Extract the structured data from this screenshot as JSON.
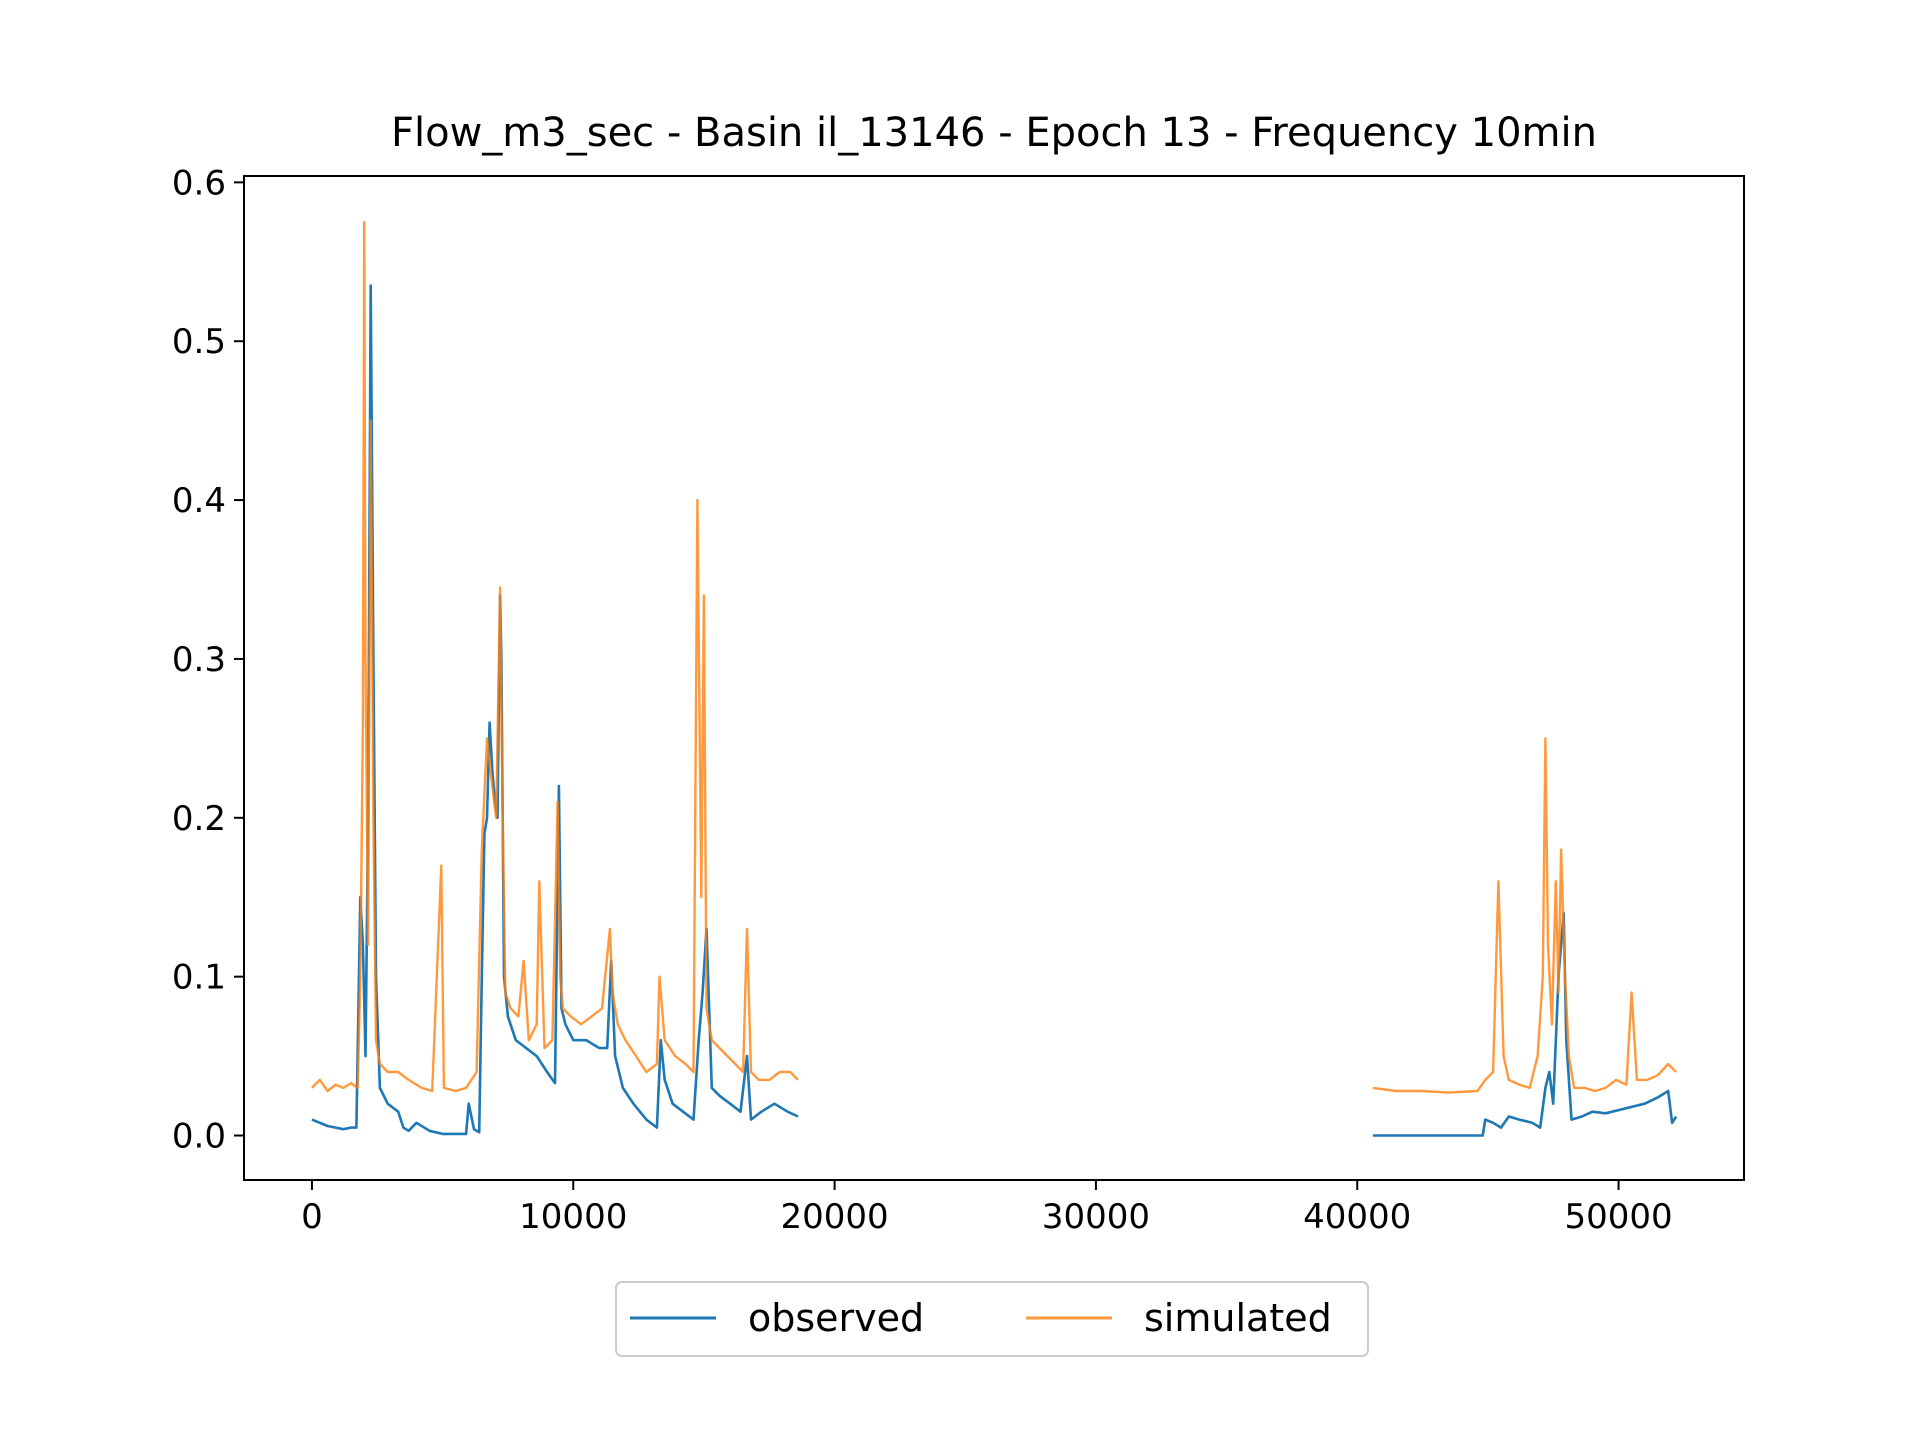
{
  "chart_data": {
    "type": "line",
    "title": "Flow_m3_sec - Basin il_13146 - Epoch 13 - Frequency 10min",
    "xlabel": "",
    "ylabel": "",
    "xlim": [
      -2600,
      54800
    ],
    "ylim": [
      -0.028,
      0.604
    ],
    "x_ticks": [
      0,
      10000,
      20000,
      30000,
      40000,
      50000
    ],
    "x_tick_labels": [
      "0",
      "10000",
      "20000",
      "30000",
      "40000",
      "50000"
    ],
    "y_ticks": [
      0.0,
      0.1,
      0.2,
      0.3,
      0.4,
      0.5,
      0.6
    ],
    "y_tick_labels": [
      "0.0",
      "0.1",
      "0.2",
      "0.3",
      "0.4",
      "0.5",
      "0.6"
    ],
    "grid": false,
    "legend": {
      "position": "bottom-center-outside",
      "columns": 2
    },
    "series": [
      {
        "name": "observed",
        "color": "#1f77b4",
        "x": [
          0,
          600,
          1200,
          1500,
          1700,
          1850,
          1950,
          2050,
          2150,
          2250,
          2350,
          2450,
          2600,
          2900,
          3300,
          3500,
          3700,
          4000,
          4500,
          5000,
          5500,
          5900,
          6000,
          6200,
          6400,
          6500,
          6600,
          6700,
          6800,
          6900,
          7000,
          7100,
          7200,
          7250,
          7350,
          7500,
          7800,
          8200,
          8600,
          9000,
          9300,
          9450,
          9550,
          9700,
          10000,
          10500,
          11000,
          11300,
          11450,
          11600,
          11900,
          12300,
          12800,
          13200,
          13350,
          13500,
          13800,
          14200,
          14600,
          14800,
          14950,
          15100,
          15300,
          15600,
          16000,
          16400,
          16650,
          16800,
          17200,
          17700,
          18200,
          18600,
          null,
          40600,
          42000,
          43500,
          44800,
          44900,
          45200,
          45500,
          45800,
          46200,
          46700,
          47000,
          47200,
          47350,
          47500,
          47700,
          47900,
          48000,
          48200,
          48600,
          49000,
          49500,
          50000,
          50500,
          51000,
          51500,
          51900,
          52050,
          52200
        ],
        "y": [
          0.01,
          0.006,
          0.004,
          0.005,
          0.005,
          0.15,
          0.12,
          0.05,
          0.2,
          0.535,
          0.3,
          0.1,
          0.03,
          0.02,
          0.015,
          0.005,
          0.003,
          0.008,
          0.003,
          0.001,
          0.001,
          0.001,
          0.02,
          0.004,
          0.002,
          0.1,
          0.19,
          0.2,
          0.26,
          0.23,
          0.21,
          0.2,
          0.34,
          0.3,
          0.1,
          0.075,
          0.06,
          0.055,
          0.05,
          0.04,
          0.033,
          0.22,
          0.08,
          0.07,
          0.06,
          0.06,
          0.055,
          0.055,
          0.11,
          0.05,
          0.03,
          0.02,
          0.01,
          0.005,
          0.06,
          0.035,
          0.02,
          0.015,
          0.01,
          0.06,
          0.09,
          0.13,
          0.03,
          0.025,
          0.02,
          0.015,
          0.05,
          0.01,
          0.015,
          0.02,
          0.015,
          0.012,
          null,
          0.0,
          0.0,
          0.0,
          0.0,
          0.01,
          0.008,
          0.005,
          0.012,
          0.01,
          0.008,
          0.005,
          0.03,
          0.04,
          0.02,
          0.1,
          0.14,
          0.06,
          0.01,
          0.012,
          0.015,
          0.014,
          0.016,
          0.018,
          0.02,
          0.024,
          0.028,
          0.008,
          0.012
        ]
      },
      {
        "name": "simulated",
        "color": "#ff7f0e",
        "x": [
          0,
          300,
          600,
          900,
          1200,
          1500,
          1750,
          1850,
          1950,
          2000,
          2050,
          2150,
          2250,
          2350,
          2450,
          2600,
          2900,
          3300,
          3700,
          4200,
          4600,
          4950,
          5050,
          5500,
          5900,
          6100,
          6300,
          6500,
          6700,
          6900,
          7050,
          7200,
          7300,
          7400,
          7600,
          7900,
          8100,
          8300,
          8600,
          8700,
          8900,
          9200,
          9400,
          9500,
          9600,
          9900,
          10300,
          10700,
          11100,
          11400,
          11500,
          11700,
          12000,
          12400,
          12800,
          13200,
          13300,
          13500,
          13900,
          14300,
          14600,
          14750,
          14900,
          15000,
          15100,
          15300,
          15600,
          15900,
          16200,
          16500,
          16650,
          16800,
          17100,
          17500,
          17900,
          18300,
          18600,
          null,
          40600,
          41500,
          42500,
          43500,
          44600,
          44900,
          45200,
          45400,
          45600,
          45800,
          46200,
          46600,
          46900,
          47100,
          47200,
          47300,
          47450,
          47600,
          47700,
          47800,
          47950,
          48100,
          48300,
          48700,
          49100,
          49500,
          49900,
          50300,
          50500,
          50700,
          51100,
          51500,
          51900,
          52200
        ],
        "y": [
          0.03,
          0.035,
          0.028,
          0.032,
          0.03,
          0.033,
          0.03,
          0.1,
          0.26,
          0.575,
          0.3,
          0.12,
          0.45,
          0.2,
          0.06,
          0.045,
          0.04,
          0.04,
          0.035,
          0.03,
          0.028,
          0.17,
          0.03,
          0.028,
          0.03,
          0.035,
          0.04,
          0.18,
          0.25,
          0.22,
          0.2,
          0.345,
          0.2,
          0.09,
          0.08,
          0.075,
          0.11,
          0.06,
          0.07,
          0.16,
          0.055,
          0.06,
          0.21,
          0.1,
          0.08,
          0.075,
          0.07,
          0.075,
          0.08,
          0.13,
          0.09,
          0.07,
          0.06,
          0.05,
          0.04,
          0.045,
          0.1,
          0.06,
          0.05,
          0.045,
          0.04,
          0.4,
          0.15,
          0.34,
          0.08,
          0.06,
          0.055,
          0.05,
          0.045,
          0.04,
          0.13,
          0.04,
          0.035,
          0.035,
          0.04,
          0.04,
          0.035,
          null,
          0.03,
          0.028,
          0.028,
          0.027,
          0.028,
          0.035,
          0.04,
          0.16,
          0.05,
          0.035,
          0.032,
          0.03,
          0.05,
          0.1,
          0.25,
          0.12,
          0.07,
          0.16,
          0.09,
          0.18,
          0.1,
          0.05,
          0.03,
          0.03,
          0.028,
          0.03,
          0.035,
          0.032,
          0.09,
          0.035,
          0.035,
          0.038,
          0.045,
          0.04
        ]
      }
    ]
  }
}
